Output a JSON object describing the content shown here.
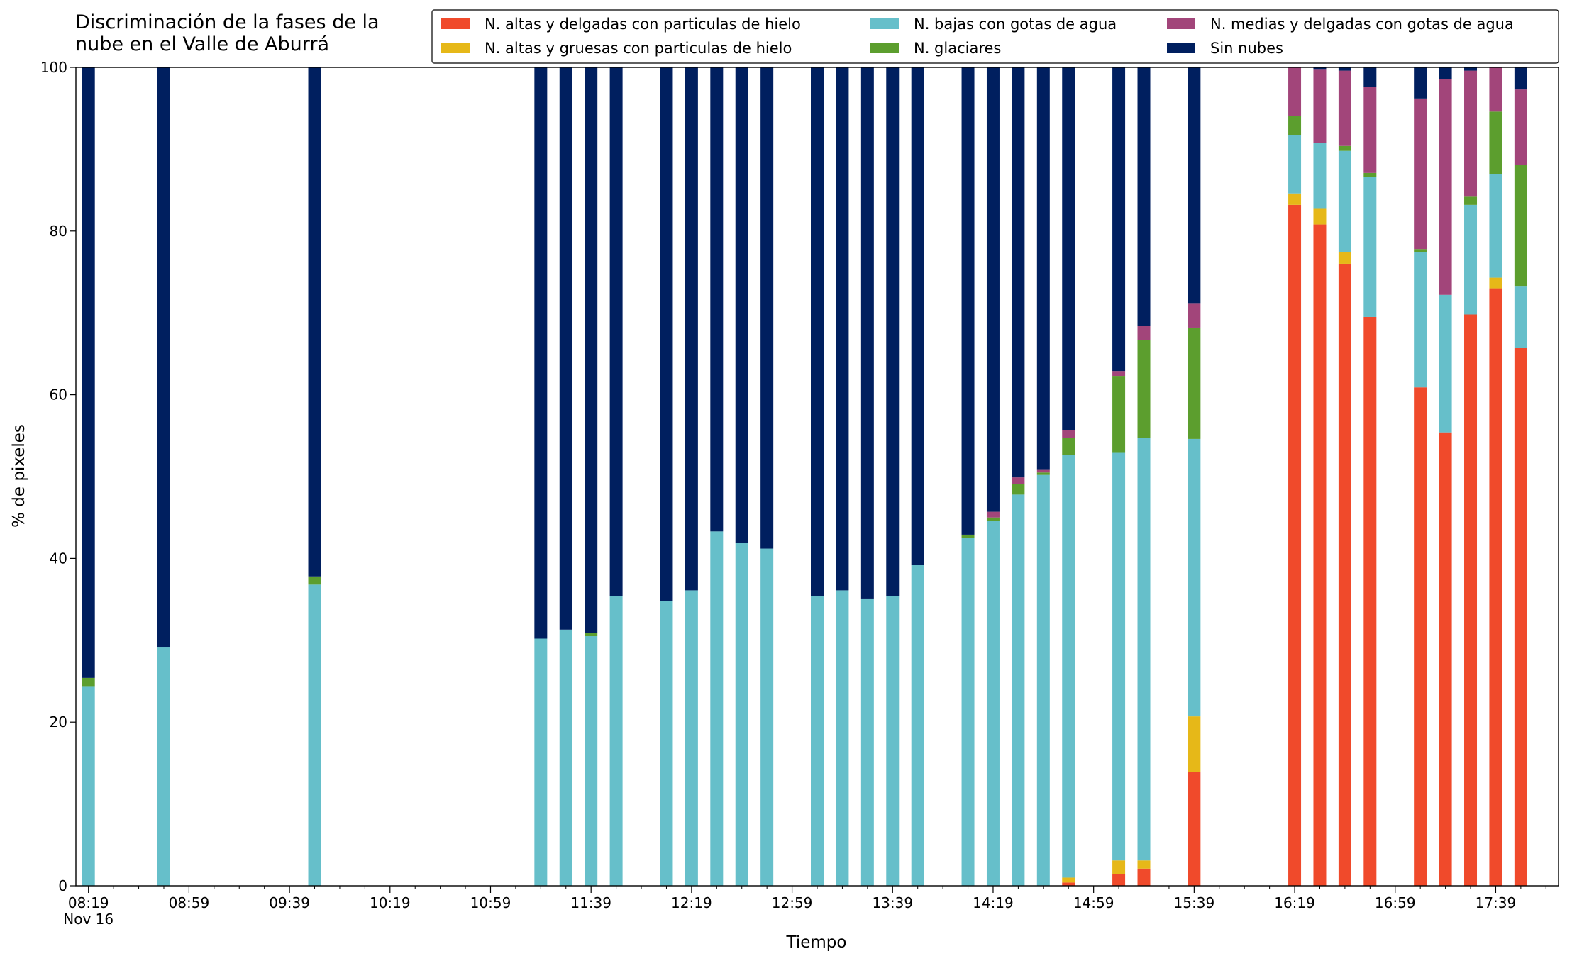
{
  "chart_data": {
    "type": "stacked_bar",
    "title": "Discriminación de la fases de la\nnube en el Valle de Aburrá",
    "xlabel": "Tiempo",
    "ylabel": "% de pixeles",
    "x": [
      "08:19",
      "08:49",
      "09:49",
      "11:19",
      "11:29",
      "11:39",
      "11:49",
      "12:09",
      "12:19",
      "12:29",
      "12:39",
      "12:49",
      "13:09",
      "13:19",
      "13:29",
      "13:39",
      "13:49",
      "14:09",
      "14:19",
      "14:29",
      "14:39",
      "14:49",
      "15:09",
      "15:19",
      "15:39",
      "16:19",
      "16:29",
      "16:39",
      "16:49",
      "17:09",
      "17:19",
      "17:29",
      "17:39",
      "17:49"
    ],
    "series": [
      {
        "name": "N. altas y delgadas con particulas de hielo",
        "color": "#f04a2b",
        "values": [
          0,
          0,
          0,
          0,
          0,
          0,
          0,
          0,
          0,
          0,
          0,
          0,
          0,
          0,
          0,
          0,
          0,
          0,
          0,
          0,
          0,
          0.4,
          1.4,
          2.1,
          13.9,
          83.2,
          80.8,
          76.0,
          69.5,
          60.9,
          55.4,
          69.8,
          73.0,
          65.7
        ]
      },
      {
        "name": "N. altas y gruesas con particulas de hielo",
        "color": "#e6b818",
        "values": [
          0,
          0,
          0,
          0,
          0,
          0,
          0,
          0,
          0,
          0,
          0,
          0,
          0,
          0,
          0,
          0,
          0,
          0,
          0,
          0,
          0,
          0.6,
          1.7,
          1.0,
          6.8,
          1.4,
          2.0,
          1.4,
          0,
          0,
          0,
          0,
          1.3,
          0
        ]
      },
      {
        "name": "N. bajas con gotas de agua",
        "color": "#66bfca",
        "values": [
          24.4,
          29.2,
          36.8,
          30.2,
          31.3,
          30.5,
          35.4,
          34.8,
          36.1,
          43.3,
          41.9,
          41.2,
          35.4,
          36.1,
          35.1,
          35.4,
          39.2,
          42.5,
          44.6,
          47.8,
          50.2,
          51.6,
          49.8,
          51.6,
          33.9,
          7.1,
          8.0,
          12.4,
          17.1,
          16.5,
          16.8,
          13.4,
          12.7,
          7.6
        ]
      },
      {
        "name": "N. glaciares",
        "color": "#5c9e2e",
        "values": [
          1.0,
          0,
          1.0,
          0,
          0,
          0.4,
          0,
          0,
          0,
          0,
          0,
          0,
          0,
          0,
          0,
          0,
          0,
          0.4,
          0.4,
          1.3,
          0.3,
          2.1,
          9.4,
          12.0,
          13.6,
          2.4,
          0,
          0.6,
          0.5,
          0.4,
          0,
          1.0,
          7.6,
          14.8
        ]
      },
      {
        "name": "N. medias y delgadas con gotas de agua",
        "color": "#a2457a",
        "values": [
          0,
          0,
          0,
          0,
          0,
          0,
          0,
          0,
          0,
          0,
          0,
          0,
          0,
          0,
          0,
          0,
          0,
          0,
          0.7,
          0.8,
          0.4,
          1.0,
          0.6,
          1.7,
          3.0,
          5.9,
          9.0,
          9.2,
          10.5,
          18.4,
          26.4,
          15.4,
          5.4,
          9.2
        ]
      },
      {
        "name": "Sin nubes",
        "color": "#001f5f",
        "values": [
          74.6,
          70.8,
          62.2,
          69.8,
          68.7,
          69.1,
          64.6,
          65.2,
          63.9,
          56.7,
          58.1,
          58.8,
          64.6,
          63.9,
          64.9,
          64.6,
          60.8,
          57.1,
          54.3,
          50.1,
          49.1,
          44.3,
          37.1,
          31.6,
          28.8,
          0,
          0.2,
          0.4,
          2.4,
          3.8,
          1.4,
          0.4,
          0,
          2.7
        ]
      }
    ],
    "xlim": [
      "08:14",
      "18:04"
    ],
    "xticks": [
      {
        "value": "08:19",
        "label": "08:19\nNov 16"
      },
      "08:59",
      "09:39",
      "10:19",
      "10:59",
      "11:39",
      "12:19",
      "12:59",
      "13:39",
      "14:19",
      "14:59",
      "15:39",
      "16:19",
      "16:59",
      "17:39"
    ],
    "xminorticks": [
      "08:29",
      "08:39",
      "08:49",
      "09:09",
      "09:19",
      "09:29",
      "09:49",
      "09:59",
      "10:09",
      "10:29",
      "10:39",
      "10:49",
      "11:09",
      "11:19",
      "11:29",
      "11:49",
      "11:59",
      "12:09",
      "12:29",
      "12:39",
      "12:49",
      "13:09",
      "13:19",
      "13:29",
      "13:49",
      "13:59",
      "14:09",
      "14:29",
      "14:39",
      "14:49",
      "15:09",
      "15:19",
      "15:29",
      "15:49",
      "15:59",
      "16:09",
      "16:29",
      "16:39",
      "16:49",
      "17:09",
      "17:19",
      "17:29",
      "17:49",
      "17:59"
    ],
    "ylim": [
      0,
      100
    ],
    "yticks": [
      0,
      20,
      40,
      60,
      80,
      100
    ],
    "legend": "upper right",
    "grid": false
  }
}
